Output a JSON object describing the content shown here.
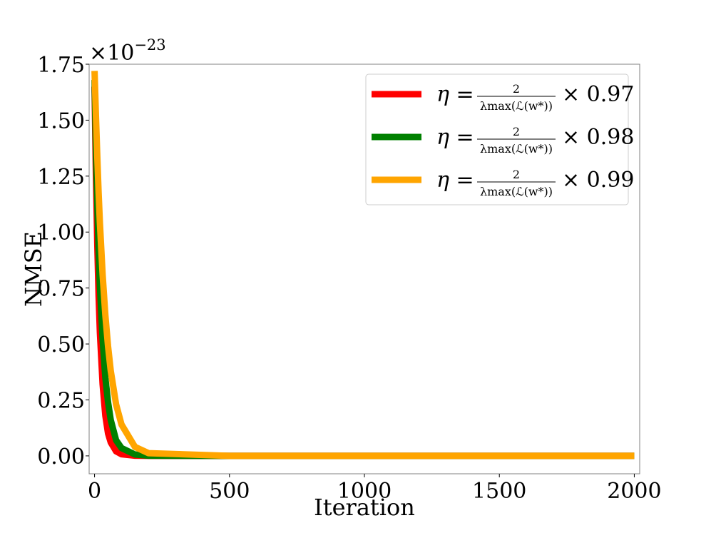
{
  "chart_data": {
    "type": "line",
    "xlabel": "Iteration",
    "ylabel": "NMSE",
    "y_multiplier": "×10",
    "y_multiplier_exp": "−23",
    "xlim": [
      -20,
      2020
    ],
    "ylim": [
      -0.08,
      1.75
    ],
    "x_ticks": [
      0,
      500,
      1000,
      1500,
      2000
    ],
    "x_tick_labels": [
      "0",
      "500",
      "1000",
      "1500",
      "2000"
    ],
    "y_ticks": [
      0.0,
      0.25,
      0.5,
      0.75,
      1.0,
      1.25,
      1.5,
      1.75
    ],
    "y_tick_labels": [
      "0.00",
      "0.25",
      "0.50",
      "0.75",
      "1.00",
      "1.25",
      "1.50",
      "1.75"
    ],
    "grid": false,
    "legend_position": "top-right",
    "series": [
      {
        "name": "η = 2/λmax(L(w*)) × 0.97",
        "legend_eq": "η =",
        "legend_num": "2",
        "legend_den": "λmax(ℒ(w*))",
        "legend_factor": "× 0.97",
        "color": "#ff0000",
        "x": [
          0,
          5,
          10,
          15,
          20,
          30,
          40,
          50,
          60,
          80,
          100,
          150,
          200,
          500,
          1000,
          1500,
          2000
        ],
        "y": [
          1.65,
          1.25,
          0.95,
          0.72,
          0.55,
          0.32,
          0.18,
          0.1,
          0.06,
          0.02,
          0.007,
          0.001,
          0.0,
          0.0,
          0.0,
          0.0,
          0.0
        ]
      },
      {
        "name": "η = 2/λmax(L(w*)) × 0.98",
        "legend_eq": "η =",
        "legend_num": "2",
        "legend_den": "λmax(ℒ(w*))",
        "legend_factor": "× 0.98",
        "color": "#008000",
        "x": [
          0,
          5,
          10,
          15,
          20,
          30,
          40,
          50,
          60,
          80,
          100,
          150,
          200,
          500,
          1000,
          1500,
          2000
        ],
        "y": [
          1.68,
          1.38,
          1.13,
          0.93,
          0.76,
          0.52,
          0.35,
          0.24,
          0.16,
          0.07,
          0.035,
          0.006,
          0.001,
          0.0,
          0.0,
          0.0,
          0.0
        ]
      },
      {
        "name": "η = 2/λmax(L(w*)) × 0.99",
        "legend_eq": "η =",
        "legend_num": "2",
        "legend_den": "λmax(ℒ(w*))",
        "legend_factor": "× 0.99",
        "color": "#ffa500",
        "x": [
          0,
          5,
          10,
          15,
          20,
          30,
          40,
          50,
          60,
          80,
          100,
          150,
          200,
          500,
          1000,
          1500,
          2000
        ],
        "y": [
          1.72,
          1.52,
          1.34,
          1.18,
          1.04,
          0.81,
          0.63,
          0.49,
          0.38,
          0.23,
          0.14,
          0.04,
          0.012,
          0.0,
          0.0,
          0.0,
          0.0
        ]
      }
    ]
  }
}
